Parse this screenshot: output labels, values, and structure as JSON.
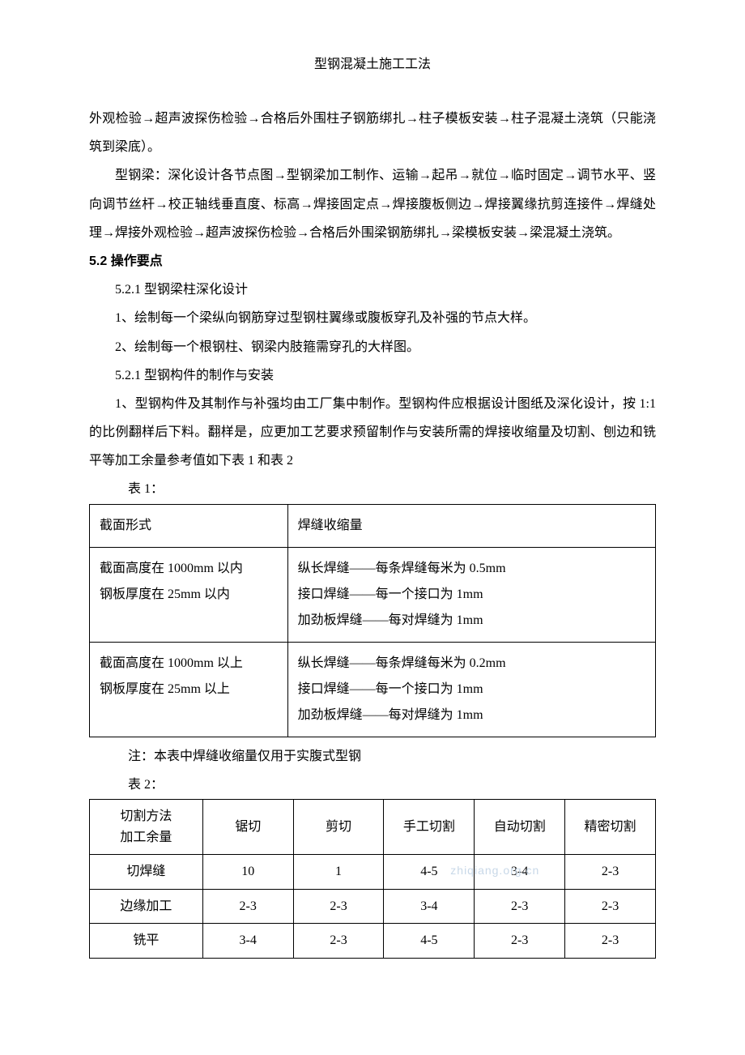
{
  "header": {
    "title": "型钢混凝土施工工法"
  },
  "body": {
    "p1": "外观检验→超声波探伤检验→合格后外围柱子钢筋绑扎→柱子模板安装→柱子混凝土浇筑（只能浇筑到梁底）。",
    "p2": "型钢梁：深化设计各节点图→型钢梁加工制作、运输→起吊→就位→临时固定→调节水平、竖向调节丝杆→校正轴线垂直度、标高→焊接固定点→焊接腹板侧边→焊接翼缘抗剪连接件→焊缝处理→焊接外观检验→超声波探伤检验→合格后外围梁钢筋绑扎→梁模板安装→梁混凝土浇筑。",
    "h_5_2": "5.2 操作要点",
    "h_5_2_1a": "5.2.1 型钢梁柱深化设计",
    "li1": "1、绘制每一个梁纵向钢筋穿过型钢柱翼缘或腹板穿孔及补强的节点大样。",
    "li2": "2、绘制每一个根钢柱、钢梁内肢箍需穿孔的大样图。",
    "h_5_2_1b": "5.2.1 型钢构件的制作与安装",
    "p3": "1、型钢构件及其制作与补强均由工厂集中制作。型钢构件应根据设计图纸及深化设计，按 1:1 的比例翻样后下料。翻样是，应更加工艺要求预留制作与安装所需的焊接收缩量及切割、刨边和铣平等加工余量参考值如下表 1 和表 2",
    "t1_label": "表 1：",
    "t1_note": "注：本表中焊缝收缩量仅用于实腹式型钢",
    "t2_label": "表 2："
  },
  "table1": {
    "h1": "截面形式",
    "h2": "焊缝收缩量",
    "r1c1a": "截面高度在 1000mm 以内",
    "r1c1b": "钢板厚度在 25mm 以内",
    "r1c2a": "纵长焊缝——每条焊缝每米为 0.5mm",
    "r1c2b": "接口焊缝——每一个接口为 1mm",
    "r1c2c": "加劲板焊缝——每对焊缝为 1mm",
    "r2c1a": "截面高度在 1000mm 以上",
    "r2c1b": "钢板厚度在 25mm 以上",
    "r2c2a": "纵长焊缝——每条焊缝每米为 0.2mm",
    "r2c2b": "接口焊缝——每一个接口为 1mm",
    "r2c2c": "加劲板焊缝——每对焊缝为 1mm"
  },
  "table2": {
    "columns": [
      "切割方法\n加工余量",
      "锯切",
      "剪切",
      "手工切割",
      "自动切割",
      "精密切割"
    ],
    "rows": [
      [
        "切焊缝",
        "10",
        "1",
        "4-5",
        "3-4",
        "2-3"
      ],
      [
        "边缘加工",
        "2-3",
        "2-3",
        "3-4",
        "2-3",
        "2-3"
      ],
      [
        "铣平",
        "3-4",
        "2-3",
        "4-5",
        "2-3",
        "2-3"
      ]
    ],
    "col_widths": [
      "20%",
      "16%",
      "16%",
      "16%",
      "16%",
      "16%"
    ]
  },
  "watermark": {
    "text1": "zhiqiang.org.cn",
    "color": "#c8d8e8"
  }
}
